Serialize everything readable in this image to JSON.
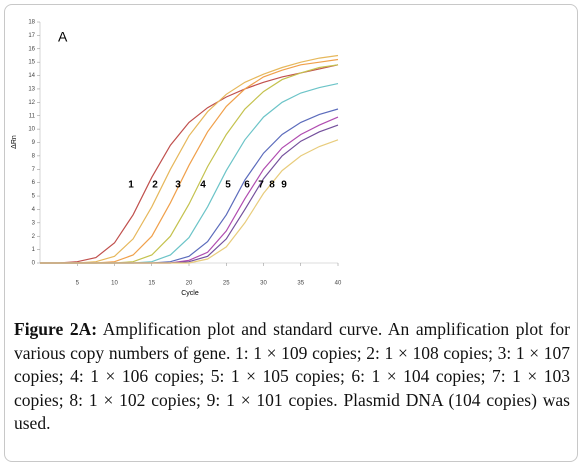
{
  "chart_data": {
    "type": "line",
    "panel_label": "A",
    "xlabel": "Cycle",
    "ylabel": "ΔRn",
    "x": [
      0,
      2.5,
      5,
      7.5,
      10,
      12.5,
      15,
      17.5,
      20,
      22.5,
      25,
      27.5,
      30,
      32.5,
      35,
      37.5,
      40
    ],
    "xlim": [
      0,
      40
    ],
    "xticks": [
      5,
      10,
      15,
      20,
      25,
      30,
      35,
      40
    ],
    "ylim": [
      0,
      18
    ],
    "yticks": [
      0,
      1,
      2,
      3,
      4,
      5,
      6,
      7,
      8,
      9,
      10,
      11,
      12,
      13,
      14,
      15,
      16,
      17,
      18
    ],
    "series": [
      {
        "name": "1",
        "color": "#c0504d",
        "values": [
          0,
          0,
          0.1,
          0.4,
          1.5,
          3.6,
          6.4,
          8.8,
          10.5,
          11.6,
          12.4,
          13.0,
          13.5,
          13.9,
          14.2,
          14.5,
          14.8
        ]
      },
      {
        "name": "2",
        "color": "#e6b85c",
        "values": [
          0,
          0,
          0,
          0.1,
          0.5,
          1.8,
          4.2,
          7.0,
          9.5,
          11.3,
          12.6,
          13.5,
          14.1,
          14.6,
          15.0,
          15.3,
          15.5
        ]
      },
      {
        "name": "3",
        "color": "#f0a04b",
        "values": [
          0,
          0,
          0,
          0,
          0.1,
          0.6,
          2.0,
          4.5,
          7.3,
          9.8,
          11.7,
          13.0,
          13.9,
          14.4,
          14.8,
          15.0,
          15.2
        ]
      },
      {
        "name": "4",
        "color": "#c4c24e",
        "values": [
          0,
          0,
          0,
          0,
          0,
          0.1,
          0.6,
          2.0,
          4.4,
          7.2,
          9.6,
          11.5,
          12.8,
          13.7,
          14.2,
          14.6,
          14.8
        ]
      },
      {
        "name": "5",
        "color": "#6cc4c8",
        "values": [
          0,
          0,
          0,
          0,
          0,
          0,
          0.1,
          0.6,
          1.9,
          4.2,
          6.9,
          9.2,
          10.9,
          12.0,
          12.7,
          13.1,
          13.4
        ]
      },
      {
        "name": "6",
        "color": "#5c6cbc",
        "values": [
          0,
          0,
          0,
          0,
          0,
          0,
          0,
          0.1,
          0.5,
          1.6,
          3.6,
          6.2,
          8.2,
          9.6,
          10.5,
          11.1,
          11.5
        ]
      },
      {
        "name": "7",
        "color": "#b04cb0",
        "values": [
          0,
          0,
          0,
          0,
          0,
          0,
          0,
          0,
          0.2,
          0.8,
          2.4,
          4.8,
          7.0,
          8.6,
          9.6,
          10.3,
          10.9
        ]
      },
      {
        "name": "8",
        "color": "#74509c",
        "values": [
          0,
          0,
          0,
          0,
          0,
          0,
          0,
          0,
          0.1,
          0.5,
          1.8,
          4.0,
          6.3,
          8.0,
          9.1,
          9.8,
          10.3
        ]
      },
      {
        "name": "9",
        "color": "#e8cc7c",
        "values": [
          0,
          0,
          0,
          0,
          0,
          0,
          0,
          0,
          0,
          0.3,
          1.2,
          3.0,
          5.2,
          6.9,
          8.0,
          8.7,
          9.2
        ]
      }
    ]
  },
  "caption": {
    "label": "Figure 2A:",
    "text": "Amplification plot and standard curve. An amplification plot for various copy numbers of gene. 1: 1 × 109 copies; 2: 1 × 108 copies; 3: 1 × 107 copies; 4: 1 × 106 copies; 5: 1 × 105 copies; 6: 1 × 104 copies; 7: 1 × 103 copies; 8: 1 × 102 copies; 9: 1 × 101 copies. Plasmid DNA (104 copies) was used."
  }
}
